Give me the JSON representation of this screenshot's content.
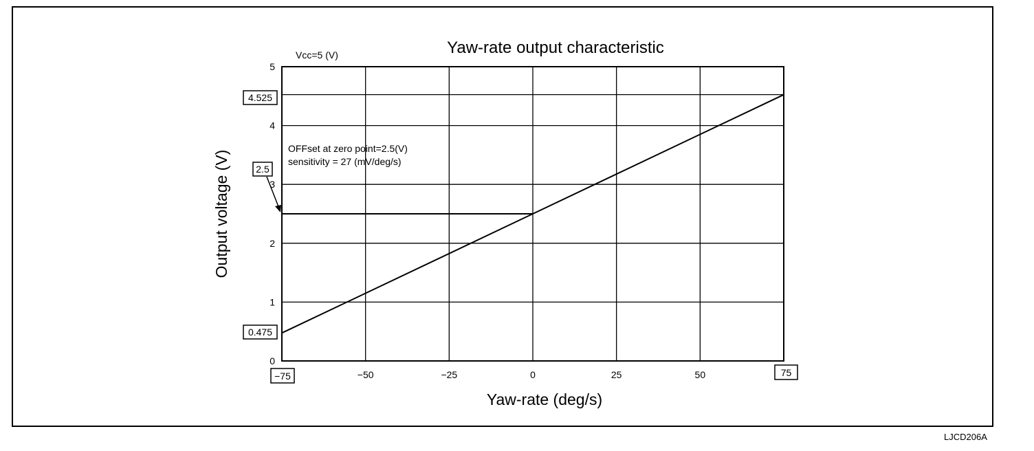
{
  "figure_code": "LJCD206A",
  "chart_data": {
    "type": "line",
    "title": "Yaw-rate output characteristic",
    "xlabel": "Yaw-rate (deg/s)",
    "ylabel": "Output voltage (V)",
    "supply_note": "Vcc=5 (V)",
    "xlim": [
      -75,
      75
    ],
    "ylim": [
      0,
      5
    ],
    "x_ticks": [
      -75,
      -50,
      -25,
      0,
      25,
      50,
      75
    ],
    "x_tick_labels": [
      "−75",
      "−50",
      "−25",
      "0",
      "25",
      "50",
      "75"
    ],
    "y_ticks": [
      0,
      1,
      2,
      3,
      4,
      5
    ],
    "y_tick_labels": [
      "0",
      "1",
      "2",
      "3",
      "4",
      "5"
    ],
    "grid": true,
    "series": [
      {
        "x": [
          -75,
          75
        ],
        "y": [
          0.475,
          4.525
        ]
      }
    ],
    "annotations": {
      "offset_text": "OFFset at zero point=2.5(V)",
      "sensitivity_text": "sensitivity = 27 (mV/deg/s)",
      "boxed_labels": [
        "4.525",
        "2.5",
        "0.475",
        "−75",
        "75"
      ],
      "offset_value": 2.5,
      "max_value": 4.525,
      "min_value": 0.475
    }
  }
}
